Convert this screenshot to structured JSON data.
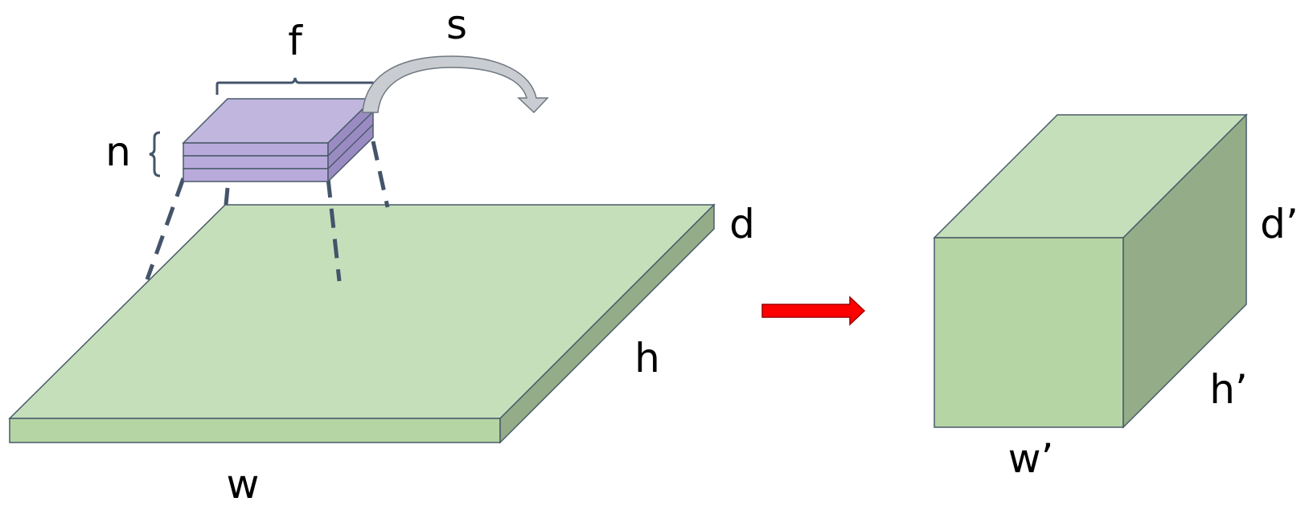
{
  "labels": {
    "filter_size": "f",
    "stride": "s",
    "num_filters": "n",
    "input_width": "w",
    "input_height": "h",
    "input_depth": "d",
    "output_width": "w’",
    "output_height": "h’",
    "output_depth": "d’"
  },
  "colors": {
    "input_top": "#c5dfbb",
    "input_front": "#b5d5a4",
    "input_side": "#94ad88",
    "output_top": "#c5dfbb",
    "output_front": "#b5d5a4",
    "output_side": "#94ad88",
    "filter_top": "#c0b6de",
    "filter_front": "#b8abdb",
    "filter_side": "#9a8cc2",
    "edge": "#4a5a6a",
    "dashed_line": "#44546a",
    "arrow": "#ff0000",
    "stride_arrow": "#c9cdd1"
  }
}
